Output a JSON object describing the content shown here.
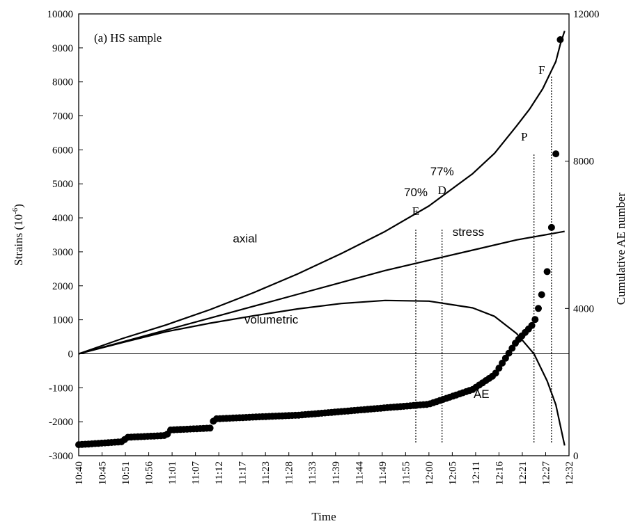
{
  "chart_data": {
    "type": "line",
    "title": "(a) HS sample",
    "xlabel": "Time",
    "ylabel_left": "Strains (10⁻⁶)",
    "ylabel_left_main": "Strains (10",
    "ylabel_left_exp": "-6",
    "ylabel_left_close": ")",
    "ylabel_right": "Cumulative AE number",
    "ylim_left": [
      -3000,
      10000
    ],
    "ylim_right": [
      0,
      12000
    ],
    "left_ticks": [
      -3000,
      -2000,
      -1000,
      0,
      1000,
      2000,
      3000,
      4000,
      5000,
      6000,
      7000,
      8000,
      9000,
      10000
    ],
    "right_ticks": [
      0,
      4000,
      8000,
      12000
    ],
    "x_tick_labels": [
      "10:40",
      "10:45",
      "10:51",
      "10:56",
      "11:01",
      "11:07",
      "11:12",
      "11:17",
      "11:23",
      "11:28",
      "11:33",
      "11:39",
      "11:44",
      "11:49",
      "11:55",
      "12:00",
      "12:05",
      "12:11",
      "12:16",
      "12:21",
      "12:27",
      "12:32"
    ],
    "x_range_minutes": [
      0,
      112
    ],
    "series": [
      {
        "name": "axial",
        "axis": "left",
        "x": [
          0,
          10,
          20,
          30,
          40,
          50,
          60,
          70,
          80,
          90,
          95,
          100,
          103,
          106,
          109,
          110,
          111
        ],
        "y": [
          0,
          450,
          850,
          1300,
          1800,
          2350,
          2950,
          3600,
          4350,
          5300,
          5900,
          6700,
          7200,
          7800,
          8600,
          9100,
          9500
        ]
      },
      {
        "name": "stress",
        "axis": "left",
        "x": [
          0,
          10,
          20,
          30,
          40,
          50,
          60,
          70,
          80,
          90,
          100,
          111
        ],
        "y": [
          0,
          350,
          700,
          1050,
          1400,
          1750,
          2100,
          2450,
          2750,
          3050,
          3350,
          3600
        ]
      },
      {
        "name": "volumetric",
        "axis": "left",
        "x": [
          0,
          10,
          20,
          30,
          40,
          50,
          60,
          70,
          80,
          90,
          95,
          100,
          104,
          107,
          109,
          110,
          111
        ],
        "y": [
          0,
          330,
          650,
          900,
          1120,
          1320,
          1480,
          1570,
          1550,
          1350,
          1100,
          600,
          0,
          -800,
          -1500,
          -2100,
          -2700
        ]
      }
    ],
    "ae_series": {
      "name": "AE",
      "axis": "right",
      "x": [
        0,
        10,
        11,
        20,
        21,
        30,
        31,
        40,
        50,
        60,
        70,
        80,
        85,
        90,
        95,
        100,
        104,
        105,
        106,
        107,
        108,
        109,
        110
      ],
      "y": [
        300,
        380,
        500,
        550,
        700,
        750,
        1000,
        1050,
        1100,
        1200,
        1300,
        1400,
        1600,
        1800,
        2200,
        3100,
        3600,
        4000,
        4500,
        5000,
        6200,
        8200,
        11300
      ]
    },
    "annotations": [
      {
        "label": "70%",
        "marker": "E",
        "x": 77
      },
      {
        "label": "77%",
        "marker": "D",
        "x": 83
      },
      {
        "label": "P",
        "x": 104
      },
      {
        "label": "F",
        "x": 108
      }
    ],
    "series_labels": [
      {
        "text": "axial",
        "x": 38,
        "y": 3270
      },
      {
        "text": "stress",
        "x": 89,
        "y": 3470
      },
      {
        "text": "volumetric",
        "x": 44,
        "y": 890
      },
      {
        "text": "AE",
        "x": 92,
        "y": -1300
      }
    ],
    "grid": false,
    "zero_line": true
  }
}
